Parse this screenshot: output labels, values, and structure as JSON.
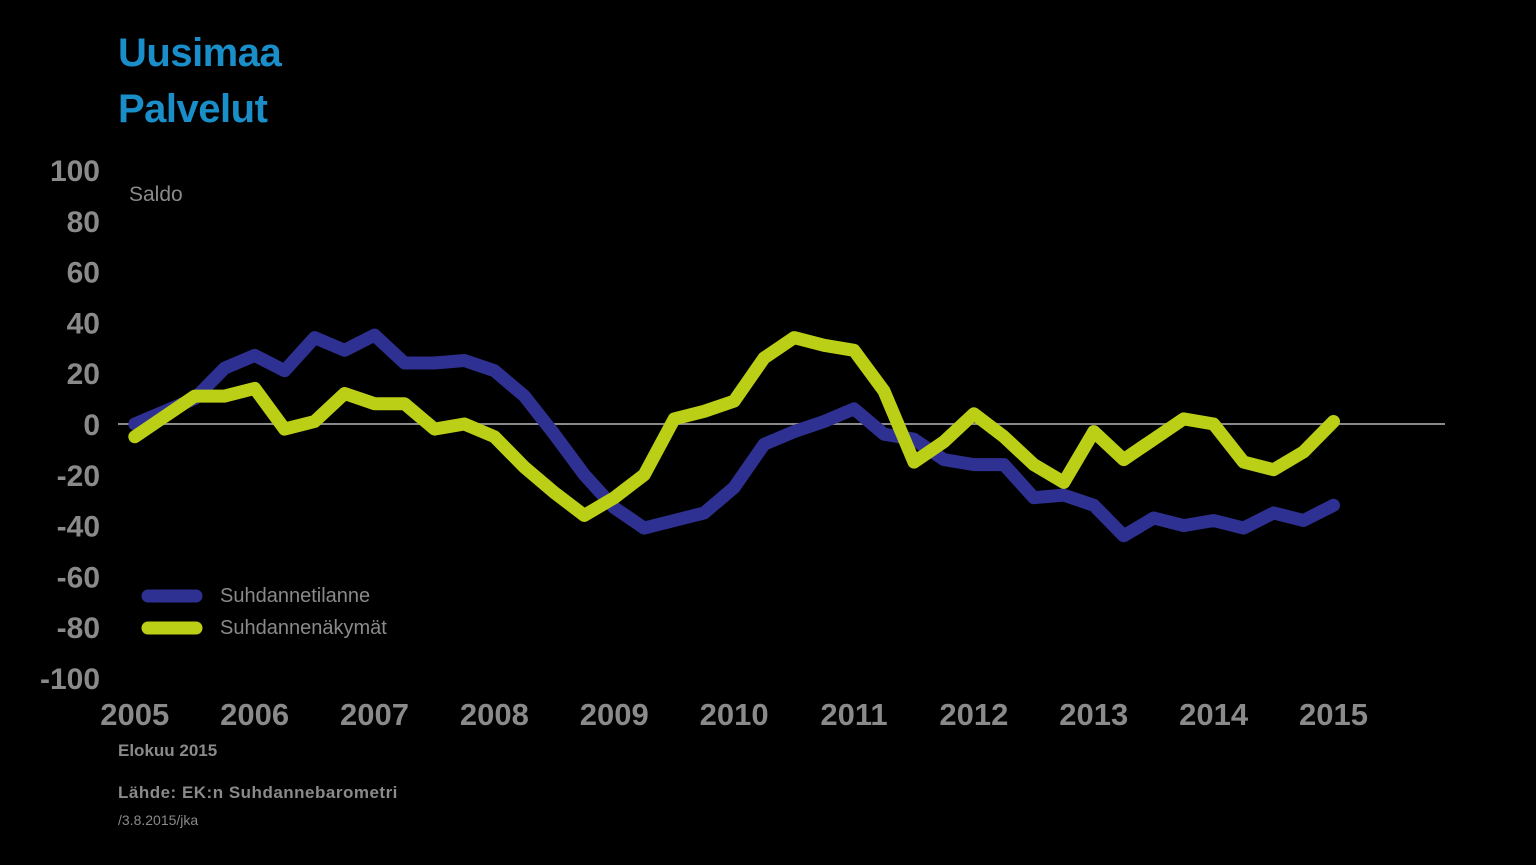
{
  "title": {
    "line1": "Uusimaa",
    "line2": "Palvelut"
  },
  "footer": {
    "date": "Elokuu 2015",
    "source": "Lähde: EK:n Suhdannebarometri",
    "id": "/3.8.2015/jka"
  },
  "colors": {
    "background": "#000000",
    "title": "#1a8ec8",
    "text": "#8a8a8a",
    "series1": "#2e3192",
    "series2": "#bccf17",
    "zero_line": "#8a8a8a"
  },
  "chart_data": {
    "type": "line",
    "ylabel": "Saldo",
    "ylim": [
      -100,
      100
    ],
    "yticks": [
      100,
      80,
      60,
      40,
      20,
      0,
      -20,
      -40,
      -60,
      -80,
      -100
    ],
    "ytick_labels": [
      "100",
      "80",
      "60",
      "40",
      "20",
      "0",
      "-20",
      "-40",
      "-60",
      "-80",
      "-100"
    ],
    "xlim": [
      2004.86,
      2015.93
    ],
    "xticks": [
      2005,
      2006,
      2007,
      2008,
      2009,
      2010,
      2011,
      2012,
      2013,
      2014,
      2015
    ],
    "xtick_labels": [
      "2005",
      "2006",
      "2007",
      "2008",
      "2009",
      "2010",
      "2011",
      "2012",
      "2013",
      "2014",
      "2015"
    ],
    "zero_line": true,
    "legend": "bottom-left",
    "series": [
      {
        "name": "Suhdannetilanne",
        "x": [
          2005.0,
          2005.25,
          2005.5,
          2005.75,
          2006.0,
          2006.25,
          2006.5,
          2006.75,
          2007.0,
          2007.25,
          2007.5,
          2007.75,
          2008.0,
          2008.25,
          2008.5,
          2008.75,
          2009.0,
          2009.25,
          2009.5,
          2009.75,
          2010.0,
          2010.25,
          2010.5,
          2010.75,
          2011.0,
          2011.25,
          2011.5,
          2011.75,
          2012.0,
          2012.25,
          2012.5,
          2012.75,
          2013.0,
          2013.25,
          2013.5,
          2013.75,
          2014.0,
          2014.25,
          2014.5,
          2014.75,
          2015.0
        ],
        "y": [
          0,
          5,
          10,
          22,
          27,
          21,
          34,
          29,
          35,
          24,
          24,
          25,
          21,
          11,
          -4,
          -20,
          -33,
          -41,
          -38,
          -35,
          -25,
          -8,
          -3,
          1,
          6,
          -4,
          -6,
          -14,
          -16,
          -16,
          -29,
          -28,
          -32,
          -44,
          -37,
          -40,
          -38,
          -41,
          -35,
          -38,
          -32
        ]
      },
      {
        "name": "Suhdannenäkymät",
        "x": [
          2005.0,
          2005.25,
          2005.5,
          2005.75,
          2006.0,
          2006.25,
          2006.5,
          2006.75,
          2007.0,
          2007.25,
          2007.5,
          2007.75,
          2008.0,
          2008.25,
          2008.5,
          2008.75,
          2009.0,
          2009.25,
          2009.5,
          2009.75,
          2010.0,
          2010.25,
          2010.5,
          2010.75,
          2011.0,
          2011.25,
          2011.5,
          2011.75,
          2012.0,
          2012.25,
          2012.5,
          2012.75,
          2013.0,
          2013.25,
          2013.5,
          2013.75,
          2014.0,
          2014.25,
          2014.5,
          2014.75,
          2015.0
        ],
        "y": [
          -5,
          3,
          11,
          11,
          14,
          -2,
          1,
          12,
          8,
          8,
          -2,
          0,
          -5,
          -17,
          -27,
          -36,
          -29,
          -20,
          2,
          5,
          9,
          26,
          34,
          31,
          29,
          13,
          -15,
          -7,
          4,
          -5,
          -16,
          -23,
          -3,
          -14,
          -6,
          2,
          0,
          -15,
          -18,
          -11,
          1
        ]
      }
    ]
  }
}
